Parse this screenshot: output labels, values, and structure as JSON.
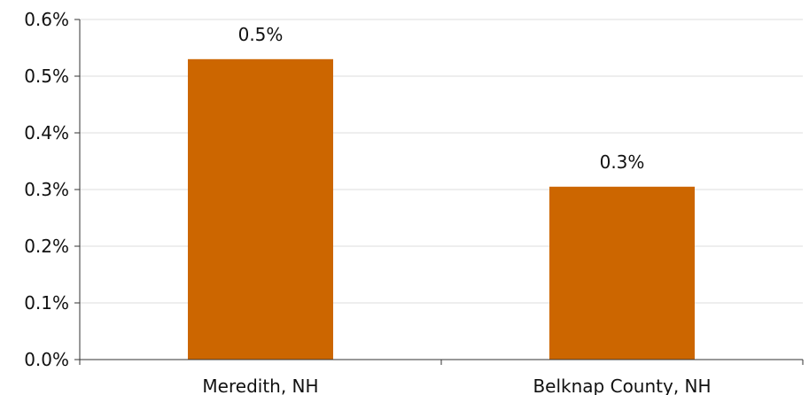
{
  "chart_data": {
    "type": "bar",
    "title": "",
    "xlabel": "",
    "ylabel": "",
    "categories": [
      "Meredith, NH",
      "Belknap County, NH"
    ],
    "values": [
      0.53,
      0.305
    ],
    "data_labels": [
      "0.5%",
      "0.3%"
    ],
    "ylim": [
      0,
      0.6
    ],
    "yticks": [
      0,
      0.1,
      0.2,
      0.3,
      0.4,
      0.5,
      0.6
    ],
    "ytick_labels": [
      "0.0%",
      "0.1%",
      "0.2%",
      "0.3%",
      "0.4%",
      "0.5%",
      "0.6%"
    ],
    "grid": true,
    "legend": "none",
    "bar_color": "#cc6600",
    "grid_color": "#dddddd",
    "axis_color": "#333333"
  }
}
